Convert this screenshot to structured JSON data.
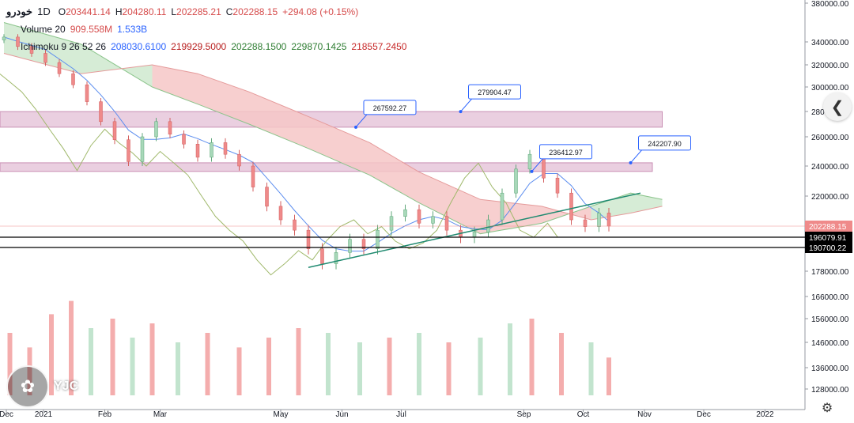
{
  "header": {
    "symbol": "خودرو",
    "timeframe": "1D",
    "open_label": "O",
    "open": "203441.14",
    "high_label": "H",
    "high": "204280.11",
    "low_label": "L",
    "low": "202285.21",
    "close_label": "C",
    "close": "202288.15",
    "change": "+294.08 (+0.15%)",
    "volume_label": "Volume 20",
    "volume_value": "909.558M",
    "volume_ma": "1.533B",
    "ichimoku_label": "Ichimoku 9 26 52 26",
    "ichimoku_base": "208030.6100",
    "ichimoku_conversion": "219929.5000",
    "ichimoku_lagging": "202288.1500",
    "ichimoku_span_a": "229870.1425",
    "ichimoku_span_b": "218557.2450"
  },
  "watermark": {
    "text": "YJC"
  },
  "colors": {
    "up": "#a8d8b9",
    "down": "#ef8a8a",
    "cloud_bear": "#f6c7c7",
    "cloud_bull": "#cfe9cf",
    "zone": "#d9a7c7",
    "trendline": "#1f8a70",
    "price_tag": "#ef8a8a"
  },
  "chart_data": {
    "type": "candlestick",
    "title": "",
    "x_axis": {
      "range": [
        "2020-12-10",
        "2022-01-20"
      ],
      "ticks": [
        {
          "label": "Dec",
          "date": "2020-12-10"
        },
        {
          "label": "2021",
          "date": "2021-01-01"
        },
        {
          "label": "Feb",
          "date": "2021-02-01"
        },
        {
          "label": "Mar",
          "date": "2021-03-01"
        },
        {
          "label": "May",
          "date": "2021-05-01"
        },
        {
          "label": "Jun",
          "date": "2021-06-01"
        },
        {
          "label": "Jul",
          "date": "2021-07-01"
        },
        {
          "label": "Sep",
          "date": "2021-09-01"
        },
        {
          "label": "Oct",
          "date": "2021-10-01"
        },
        {
          "label": "Nov",
          "date": "2021-11-01"
        },
        {
          "label": "Dec",
          "date": "2021-12-01"
        },
        {
          "label": "2022",
          "date": "2022-01-01"
        }
      ]
    },
    "y_axis": {
      "position": "right",
      "ticks": [
        {
          "label": "380000.00",
          "value": 380000
        },
        {
          "label": "340000.00",
          "value": 340000
        },
        {
          "label": "320000.00",
          "value": 320000
        },
        {
          "label": "300000.00",
          "value": 300000
        },
        {
          "label": "280000.00",
          "value": 280000
        },
        {
          "label": "260000.00",
          "value": 260000
        },
        {
          "label": "240000.00",
          "value": 240000
        },
        {
          "label": "220000.00",
          "value": 220000
        },
        {
          "label": "178000.00",
          "value": 178000
        },
        {
          "label": "166000.00",
          "value": 166000
        },
        {
          "label": "156000.00",
          "value": 156000
        },
        {
          "label": "146000.00",
          "value": 146000
        },
        {
          "label": "136000.00",
          "value": 136000
        },
        {
          "label": "128000.00",
          "value": 128000
        }
      ]
    },
    "price_tags": [
      {
        "label": "202288.15",
        "value": 202288.15,
        "style": "filled"
      },
      {
        "label": "196079.91",
        "value": 196079.91,
        "style": "outline"
      },
      {
        "label": "190700.22",
        "value": 190700.22,
        "style": "outline"
      }
    ],
    "horizontal_levels": [
      196079.91,
      190700.22
    ],
    "zones": [
      {
        "from": 267592.27,
        "to": 279904.47,
        "start": "2020-12-10",
        "end": "2021-11-10"
      },
      {
        "from": 236412.97,
        "to": 242207.9,
        "start": "2020-12-10",
        "end": "2021-11-05"
      }
    ],
    "callouts": [
      {
        "label": "267592.27",
        "date": "2021-06-08",
        "value": 267592.27
      },
      {
        "label": "279904.47",
        "date": "2021-07-31",
        "value": 279904.47
      },
      {
        "label": "236412.97",
        "date": "2021-09-05",
        "value": 236412.97
      },
      {
        "label": "242207.90",
        "date": "2021-10-25",
        "value": 242207.9
      }
    ],
    "trendline": {
      "start": {
        "date": "2021-05-15",
        "value": 180000
      },
      "end": {
        "date": "2021-10-30",
        "value": 222000
      }
    },
    "candles": [
      {
        "d": "2020-12-12",
        "o": 342000,
        "c": 345000
      },
      {
        "d": "2020-12-19",
        "o": 345000,
        "c": 336000
      },
      {
        "d": "2020-12-26",
        "o": 336000,
        "c": 330000
      },
      {
        "d": "2021-01-02",
        "o": 330000,
        "c": 322000
      },
      {
        "d": "2021-01-09",
        "o": 322000,
        "c": 312000
      },
      {
        "d": "2021-01-16",
        "o": 312000,
        "c": 302000
      },
      {
        "d": "2021-01-23",
        "o": 302000,
        "c": 288000
      },
      {
        "d": "2021-01-30",
        "o": 288000,
        "c": 272000
      },
      {
        "d": "2021-02-06",
        "o": 272000,
        "c": 258000
      },
      {
        "d": "2021-02-13",
        "o": 258000,
        "c": 243000
      },
      {
        "d": "2021-02-20",
        "o": 243000,
        "c": 260000
      },
      {
        "d": "2021-02-27",
        "o": 260000,
        "c": 272000
      },
      {
        "d": "2021-03-06",
        "o": 272000,
        "c": 262000
      },
      {
        "d": "2021-03-13",
        "o": 262000,
        "c": 255000
      },
      {
        "d": "2021-03-20",
        "o": 255000,
        "c": 246000
      },
      {
        "d": "2021-03-27",
        "o": 246000,
        "c": 256000
      },
      {
        "d": "2021-04-03",
        "o": 256000,
        "c": 248000
      },
      {
        "d": "2021-04-10",
        "o": 248000,
        "c": 240000
      },
      {
        "d": "2021-04-17",
        "o": 240000,
        "c": 226000
      },
      {
        "d": "2021-04-24",
        "o": 226000,
        "c": 214000
      },
      {
        "d": "2021-05-01",
        "o": 214000,
        "c": 206000
      },
      {
        "d": "2021-05-08",
        "o": 206000,
        "c": 200000
      },
      {
        "d": "2021-05-15",
        "o": 200000,
        "c": 190000
      },
      {
        "d": "2021-05-22",
        "o": 190000,
        "c": 182000
      },
      {
        "d": "2021-05-29",
        "o": 182000,
        "c": 188000
      },
      {
        "d": "2021-06-05",
        "o": 188000,
        "c": 195000
      },
      {
        "d": "2021-06-12",
        "o": 195000,
        "c": 190000
      },
      {
        "d": "2021-06-19",
        "o": 190000,
        "c": 200000
      },
      {
        "d": "2021-06-26",
        "o": 200000,
        "c": 208000
      },
      {
        "d": "2021-07-03",
        "o": 208000,
        "c": 212000
      },
      {
        "d": "2021-07-10",
        "o": 212000,
        "c": 204000
      },
      {
        "d": "2021-07-17",
        "o": 204000,
        "c": 208000
      },
      {
        "d": "2021-07-24",
        "o": 208000,
        "c": 200000
      },
      {
        "d": "2021-07-31",
        "o": 200000,
        "c": 196000
      },
      {
        "d": "2021-08-07",
        "o": 196000,
        "c": 199000
      },
      {
        "d": "2021-08-14",
        "o": 199000,
        "c": 206000
      },
      {
        "d": "2021-08-21",
        "o": 206000,
        "c": 222000
      },
      {
        "d": "2021-08-28",
        "o": 222000,
        "c": 238000
      },
      {
        "d": "2021-09-04",
        "o": 238000,
        "c": 248000
      },
      {
        "d": "2021-09-11",
        "o": 248000,
        "c": 232000
      },
      {
        "d": "2021-09-18",
        "o": 232000,
        "c": 222000
      },
      {
        "d": "2021-09-25",
        "o": 222000,
        "c": 206000
      },
      {
        "d": "2021-10-02",
        "o": 206000,
        "c": 202000
      },
      {
        "d": "2021-10-09",
        "o": 202000,
        "c": 210000
      },
      {
        "d": "2021-10-14",
        "o": 210000,
        "c": 202288
      }
    ],
    "cloud": [
      {
        "d": "2020-12-12",
        "a": 360000,
        "b": 330000
      },
      {
        "d": "2021-01-20",
        "a": 338000,
        "b": 312000
      },
      {
        "d": "2021-02-25",
        "a": 300000,
        "b": 320000
      },
      {
        "d": "2021-03-20",
        "a": 286000,
        "b": 312000
      },
      {
        "d": "2021-04-15",
        "a": 270000,
        "b": 296000
      },
      {
        "d": "2021-05-15",
        "a": 252000,
        "b": 276000
      },
      {
        "d": "2021-06-15",
        "a": 234000,
        "b": 256000
      },
      {
        "d": "2021-07-10",
        "a": 216000,
        "b": 236000
      },
      {
        "d": "2021-08-10",
        "a": 198000,
        "b": 218000
      },
      {
        "d": "2021-09-10",
        "a": 204000,
        "b": 214000
      },
      {
        "d": "2021-10-05",
        "a": 214000,
        "b": 206000
      },
      {
        "d": "2021-10-25",
        "a": 222000,
        "b": 210000
      },
      {
        "d": "2021-11-10",
        "a": 218000,
        "b": 214000
      }
    ],
    "volume": [
      {
        "d": "2020-12-15",
        "v": 0.55,
        "up": false
      },
      {
        "d": "2020-12-25",
        "v": 0.4,
        "up": false
      },
      {
        "d": "2021-01-05",
        "v": 0.75,
        "up": false
      },
      {
        "d": "2021-01-15",
        "v": 0.9,
        "up": false
      },
      {
        "d": "2021-01-25",
        "v": 0.6,
        "up": true
      },
      {
        "d": "2021-02-05",
        "v": 0.7,
        "up": false
      },
      {
        "d": "2021-02-15",
        "v": 0.5,
        "up": true
      },
      {
        "d": "2021-02-25",
        "v": 0.65,
        "up": false
      },
      {
        "d": "2021-03-10",
        "v": 0.45,
        "up": true
      },
      {
        "d": "2021-03-25",
        "v": 0.55,
        "up": false
      },
      {
        "d": "2021-04-10",
        "v": 0.4,
        "up": false
      },
      {
        "d": "2021-04-25",
        "v": 0.5,
        "up": false
      },
      {
        "d": "2021-05-10",
        "v": 0.6,
        "up": false
      },
      {
        "d": "2021-05-25",
        "v": 0.55,
        "up": true
      },
      {
        "d": "2021-06-10",
        "v": 0.45,
        "up": true
      },
      {
        "d": "2021-06-25",
        "v": 0.5,
        "up": false
      },
      {
        "d": "2021-07-10",
        "v": 0.55,
        "up": true
      },
      {
        "d": "2021-07-25",
        "v": 0.45,
        "up": false
      },
      {
        "d": "2021-08-10",
        "v": 0.5,
        "up": true
      },
      {
        "d": "2021-08-25",
        "v": 0.65,
        "up": true
      },
      {
        "d": "2021-09-05",
        "v": 0.7,
        "up": false
      },
      {
        "d": "2021-09-20",
        "v": 0.55,
        "up": false
      },
      {
        "d": "2021-10-05",
        "v": 0.45,
        "up": true
      },
      {
        "d": "2021-10-14",
        "v": 0.3,
        "up": false
      }
    ]
  }
}
